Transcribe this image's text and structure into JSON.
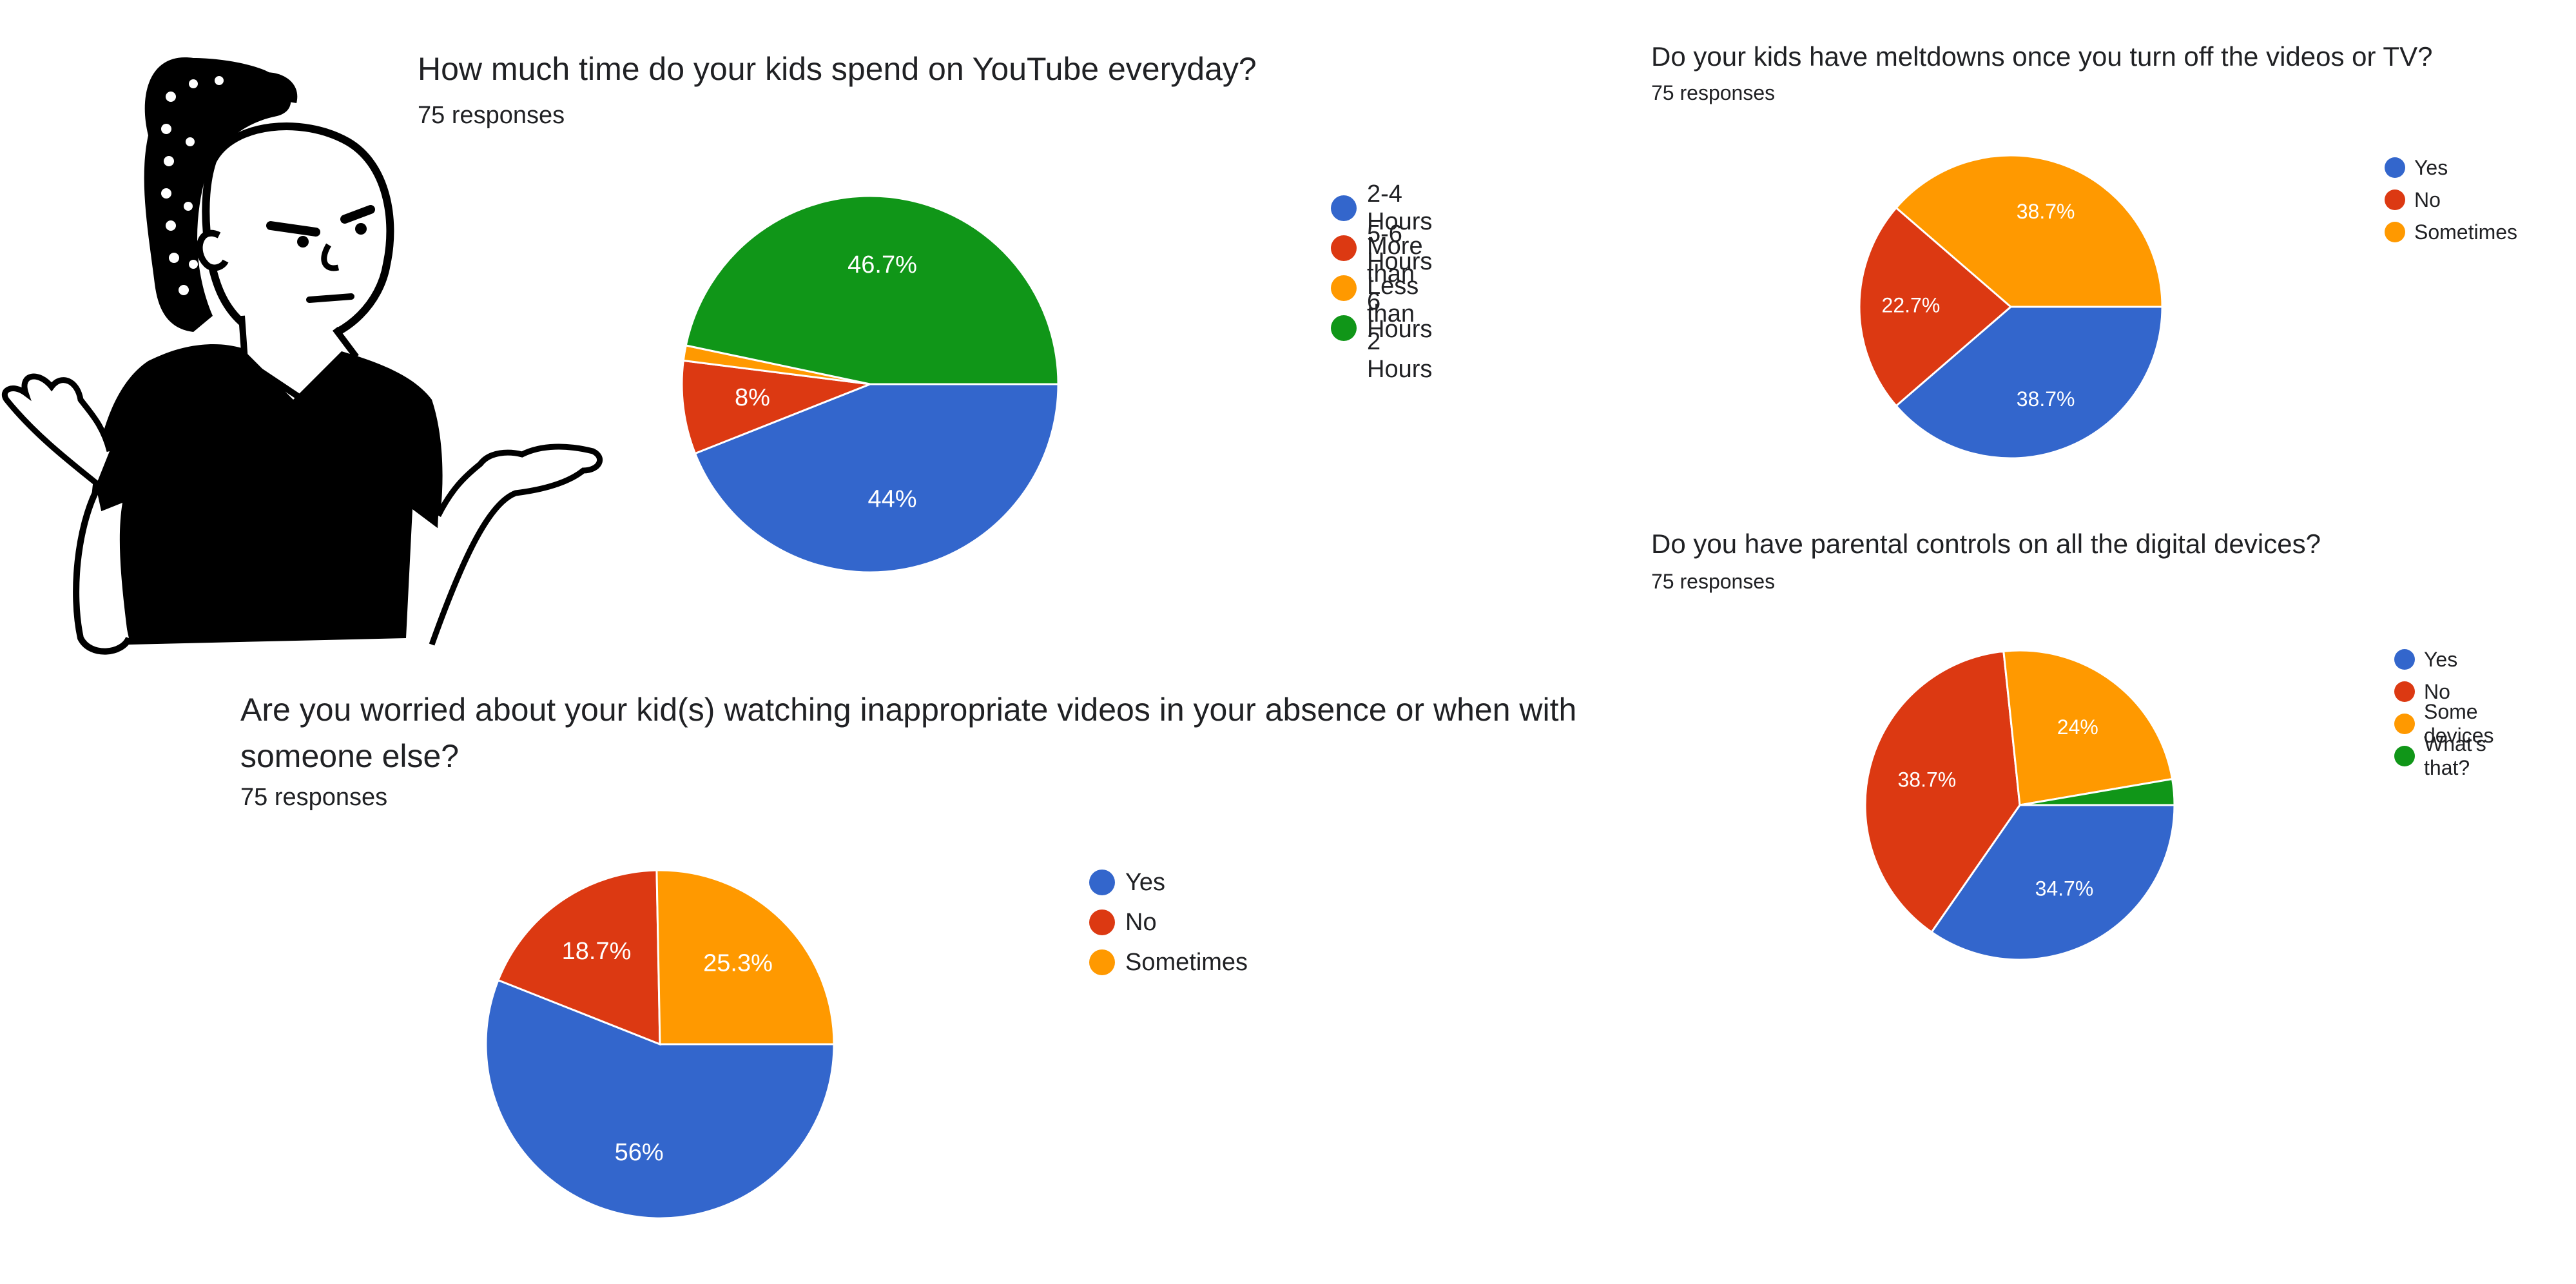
{
  "chart_data": [
    {
      "type": "pie",
      "title": "How much time do your kids spend on YouTube everyday?",
      "subtitle": "75 responses",
      "categories": [
        "2-4 Hours",
        "5-6 Hours",
        "More than 6 Hours",
        "Less than 2 Hours"
      ],
      "values": [
        44,
        8,
        1.3,
        46.7
      ],
      "data_labels": [
        "44%",
        "8%",
        "",
        "46.7%"
      ],
      "colors": [
        "#3366cc",
        "#dc3912",
        "#ff9900",
        "#109618"
      ],
      "legend": "right"
    },
    {
      "type": "pie",
      "title": "Do your kids have meltdowns once you turn off the videos or TV?",
      "subtitle": "75 responses",
      "categories": [
        "Yes",
        "No",
        "Sometimes"
      ],
      "values": [
        38.7,
        22.7,
        38.7
      ],
      "data_labels": [
        "38.7%",
        "22.7%",
        "38.7%"
      ],
      "colors": [
        "#3366cc",
        "#dc3912",
        "#ff9900"
      ],
      "legend": "right"
    },
    {
      "type": "pie",
      "title": "Do you have parental controls on all the digital devices?",
      "subtitle": "75 responses",
      "categories": [
        "Yes",
        "No",
        "Some devices",
        "What's that?"
      ],
      "values": [
        34.7,
        38.7,
        24,
        2.7
      ],
      "data_labels": [
        "34.7%",
        "38.7%",
        "24%",
        ""
      ],
      "colors": [
        "#3366cc",
        "#dc3912",
        "#ff9900",
        "#109618"
      ],
      "legend": "right"
    },
    {
      "type": "pie",
      "title": "Are you worried about your kid(s) watching inappropriate videos in your absence or when with someone else?",
      "title_lines": [
        "Are you worried about your kid(s) watching inappropriate videos in your absence or when with",
        "someone else?"
      ],
      "subtitle": "75 responses",
      "categories": [
        "Yes",
        "No",
        "Sometimes"
      ],
      "values": [
        56,
        18.7,
        25.3
      ],
      "data_labels": [
        "56%",
        "18.7%",
        "25.3%"
      ],
      "colors": [
        "#3366cc",
        "#dc3912",
        "#ff9900"
      ],
      "legend": "right"
    }
  ],
  "illustration": {
    "icon": "shrugging-person-icon",
    "colors": {
      "ink": "#000000",
      "paper": "#ffffff"
    }
  }
}
